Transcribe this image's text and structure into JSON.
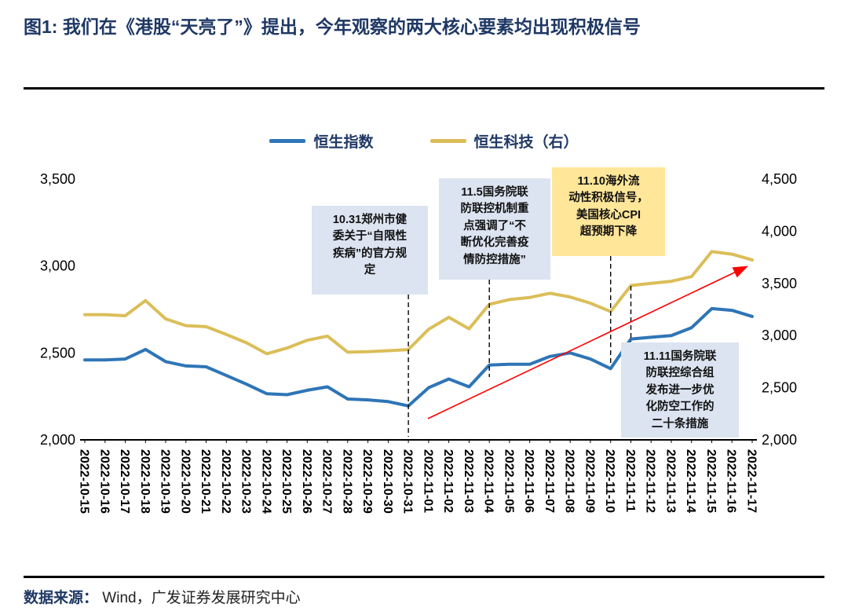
{
  "figure": {
    "title": "图1:  我们在《港股“天亮了”》提出，今年观察的两大核心要素均出现积极信号",
    "source_label": "数据来源：",
    "source_text": "Wind，广发证券发展研究中心"
  },
  "colors": {
    "hs_index": "#2E75B6",
    "hs_tech": "#DBBE59",
    "title_navy": "#1F3864",
    "annotation_blue_bg": "#DCE3F1",
    "annotation_yellow_bg": "#FFE699",
    "arrow_red": "#FF0000"
  },
  "chart_data": {
    "type": "line",
    "grid": false,
    "legend_position": "top",
    "categories": [
      "2022-10-15",
      "2022-10-16",
      "2022-10-17",
      "2022-10-18",
      "2022-10-19",
      "2022-10-20",
      "2022-10-21",
      "2022-10-22",
      "2022-10-23",
      "2022-10-24",
      "2022-10-25",
      "2022-10-26",
      "2022-10-27",
      "2022-10-28",
      "2022-10-29",
      "2022-10-30",
      "2022-10-31",
      "2022-11-01",
      "2022-11-02",
      "2022-11-03",
      "2022-11-04",
      "2022-11-05",
      "2022-11-06",
      "2022-11-07",
      "2022-11-08",
      "2022-11-09",
      "2022-11-10",
      "2022-11-11",
      "2022-11-12",
      "2022-11-13",
      "2022-11-14",
      "2022-11-15",
      "2022-11-16",
      "2022-11-17"
    ],
    "series": [
      {
        "name": "恒生指数",
        "axis": "left",
        "color_key": "hs_index",
        "values": [
          2460,
          2460,
          2465,
          2520,
          2450,
          2425,
          2420,
          2370,
          2320,
          2265,
          2260,
          2285,
          2305,
          2235,
          2230,
          2220,
          2195,
          2300,
          2350,
          2305,
          2430,
          2435,
          2435,
          2480,
          2500,
          2465,
          2410,
          2580,
          2590,
          2600,
          2645,
          2755,
          2745,
          2710
        ]
      },
      {
        "name": "恒生科技（右）",
        "axis": "right",
        "color_key": "hs_tech",
        "values": [
          3200,
          3200,
          3190,
          3335,
          3160,
          3095,
          3085,
          3010,
          2930,
          2825,
          2880,
          2955,
          2995,
          2840,
          2845,
          2855,
          2865,
          3060,
          3175,
          3065,
          3300,
          3345,
          3365,
          3405,
          3370,
          3310,
          3230,
          3480,
          3500,
          3520,
          3565,
          3805,
          3780,
          3725
        ]
      }
    ],
    "left_axis": {
      "min": 2000,
      "max": 3500,
      "tick_labels": [
        "3,500",
        "3,000",
        "2,500",
        "2,000"
      ]
    },
    "right_axis": {
      "min": 2000,
      "max": 4500,
      "tick_labels": [
        "4,500",
        "4,000",
        "3,500",
        "3,000",
        "2,500",
        "2,000"
      ]
    },
    "annotations": [
      {
        "id": "a1031",
        "bg": "blue",
        "line_date": "2022-10-31",
        "text": "10.31郑州市健\n委关于“自限性\n疾病”的官方规\n定"
      },
      {
        "id": "a1105",
        "bg": "blue",
        "line_date": "2022-11-04",
        "text": "11.5国务院联\n防联控机制重\n点强调了“不\n断优化完善疫\n情防控措施”"
      },
      {
        "id": "a1110",
        "bg": "yellow",
        "line_date": "2022-11-10",
        "text": "11.10海外流\n动性积极信号，\n美国核心CPI\n超预期下降"
      },
      {
        "id": "a1111",
        "bg": "blue",
        "line_date": "2022-11-11",
        "text": "11.11国务院联\n防联控综合组\n发布进一步优\n化防空工作的\n二十条措施"
      }
    ],
    "trend_arrow": {
      "from_date": "2022-11-01",
      "to_date": "2022-11-17",
      "color": "#FF0000"
    }
  }
}
